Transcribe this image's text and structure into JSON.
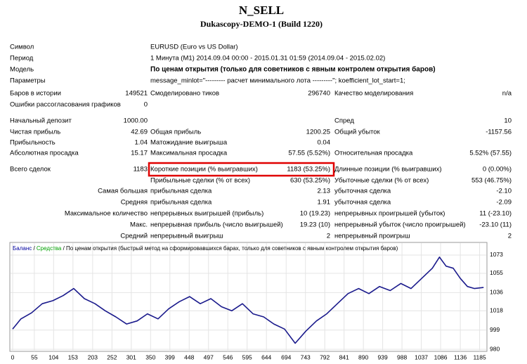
{
  "report": {
    "title": "N_SELL",
    "server": "Dukascopy-DEMO-1 (Build 1220)",
    "info": [
      {
        "label": "Символ",
        "value": "EURUSD (Euro vs US Dollar)"
      },
      {
        "label": "Период",
        "value": "1 Минута (M1) 2014.09.04 00:00 - 2015.01.31 01:59 (2014.09.04 - 2015.02.02)"
      },
      {
        "label": "Модель",
        "value": "По ценам открытия (только для советников с явным контролем открытия баров)",
        "color": "#e00000"
      },
      {
        "label": "Параметры",
        "value": "message_minlot=\"--------- расчет минимального лота ---------\"; koefficient_lot_start=1;"
      }
    ],
    "stats": [
      [
        "Баров в истории",
        "149521",
        "Смоделировано тиков",
        "296740",
        "Качество моделирования",
        "n/a"
      ],
      [
        "Ошибки рассогласования графиков",
        "0",
        null,
        null,
        null,
        null
      ],
      [
        "Начальный депозит",
        "1000.00",
        null,
        null,
        "Спред",
        "10"
      ],
      [
        "Чистая прибыль",
        "42.69",
        "Общая прибыль",
        "1200.25",
        "Общий убыток",
        "-1157.56"
      ],
      [
        "Прибыльность",
        "1.04",
        "Матожидание выигрыша",
        "0.04",
        null,
        null
      ],
      [
        "Абсолютная просадка",
        "15.17",
        "Максимальная просадка",
        "57.55 (5.52%)",
        "Относительная просадка",
        "5.52% (57.55)"
      ],
      [
        "Всего сделок",
        "1183",
        "Короткие позиции (% выигравших)",
        "1183 (53.25%)",
        "Длинные позиции (% выигравших)",
        "0 (0.00%)"
      ],
      [
        null,
        null,
        "Прибыльные сделки (% от всех)",
        "630 (53.25%)",
        "Убыточные сделки (% от всех)",
        "553 (46.75%)"
      ],
      [
        "Самая большая",
        null,
        "прибыльная сделка",
        "2.13",
        "убыточная сделка",
        "-2.10"
      ],
      [
        "Средняя",
        null,
        "прибыльная сделка",
        "1.91",
        "убыточная сделка",
        "-2.09"
      ],
      [
        "Максимальное количество",
        null,
        "непрерывных выигрышей (прибыль)",
        "10 (19.23)",
        "непрерывных проигрышей (убыток)",
        "11 (-23.10)"
      ],
      [
        "Макс.",
        null,
        "непрерывная прибыль (число выигрышей)",
        "19.23 (10)",
        "непрерывный убыток (число проигрышей)",
        "-23.10 (11)"
      ],
      [
        "Средний",
        null,
        "непрерывный выигрыш",
        "2",
        "непрерывный проигрыш",
        "2"
      ]
    ]
  },
  "chart_data": {
    "type": "line",
    "legend": [
      {
        "text": "Баланс",
        "color": "#0000a0"
      },
      {
        "text": " / ",
        "color": "#000000"
      },
      {
        "text": "Средства",
        "color": "#00a000"
      },
      {
        "text": " / По ценам открытия (быстрый метод на сформировавшихся барах, только для советников с явным контролем открытия баров)",
        "color": "#000000"
      }
    ],
    "series": [
      {
        "name": "Баланс",
        "color": "#1a1a8c",
        "x": [
          0,
          21,
          48,
          75,
          102,
          128,
          155,
          182,
          209,
          235,
          262,
          289,
          316,
          342,
          369,
          396,
          423,
          449,
          476,
          503,
          530,
          556,
          583,
          610,
          637,
          663,
          690,
          717,
          744,
          771,
          797,
          824,
          851,
          878,
          904,
          931,
          958,
          985,
          1011,
          1038,
          1065,
          1083,
          1100,
          1118,
          1136,
          1154,
          1172,
          1195
        ],
        "values": [
          1000,
          1010,
          1016,
          1025,
          1028,
          1033,
          1040,
          1030,
          1025,
          1018,
          1012,
          1005,
          1008,
          1015,
          1010,
          1020,
          1027,
          1032,
          1025,
          1030,
          1022,
          1018,
          1025,
          1015,
          1012,
          1005,
          1000,
          986,
          998,
          1008,
          1015,
          1025,
          1035,
          1040,
          1035,
          1042,
          1038,
          1045,
          1040,
          1050,
          1060,
          1071,
          1062,
          1060,
          1050,
          1042,
          1040,
          1041
        ]
      }
    ],
    "xlim": [
      0,
      1200
    ],
    "xticks": [
      0,
      55,
      104,
      153,
      203,
      252,
      301,
      350,
      399,
      448,
      497,
      546,
      595,
      644,
      694,
      743,
      792,
      841,
      890,
      939,
      988,
      1037,
      1086,
      1136,
      1185
    ],
    "ylim": [
      978,
      1082
    ],
    "yticks": [
      980,
      999,
      1018,
      1036,
      1055,
      1073
    ],
    "grid": true
  }
}
